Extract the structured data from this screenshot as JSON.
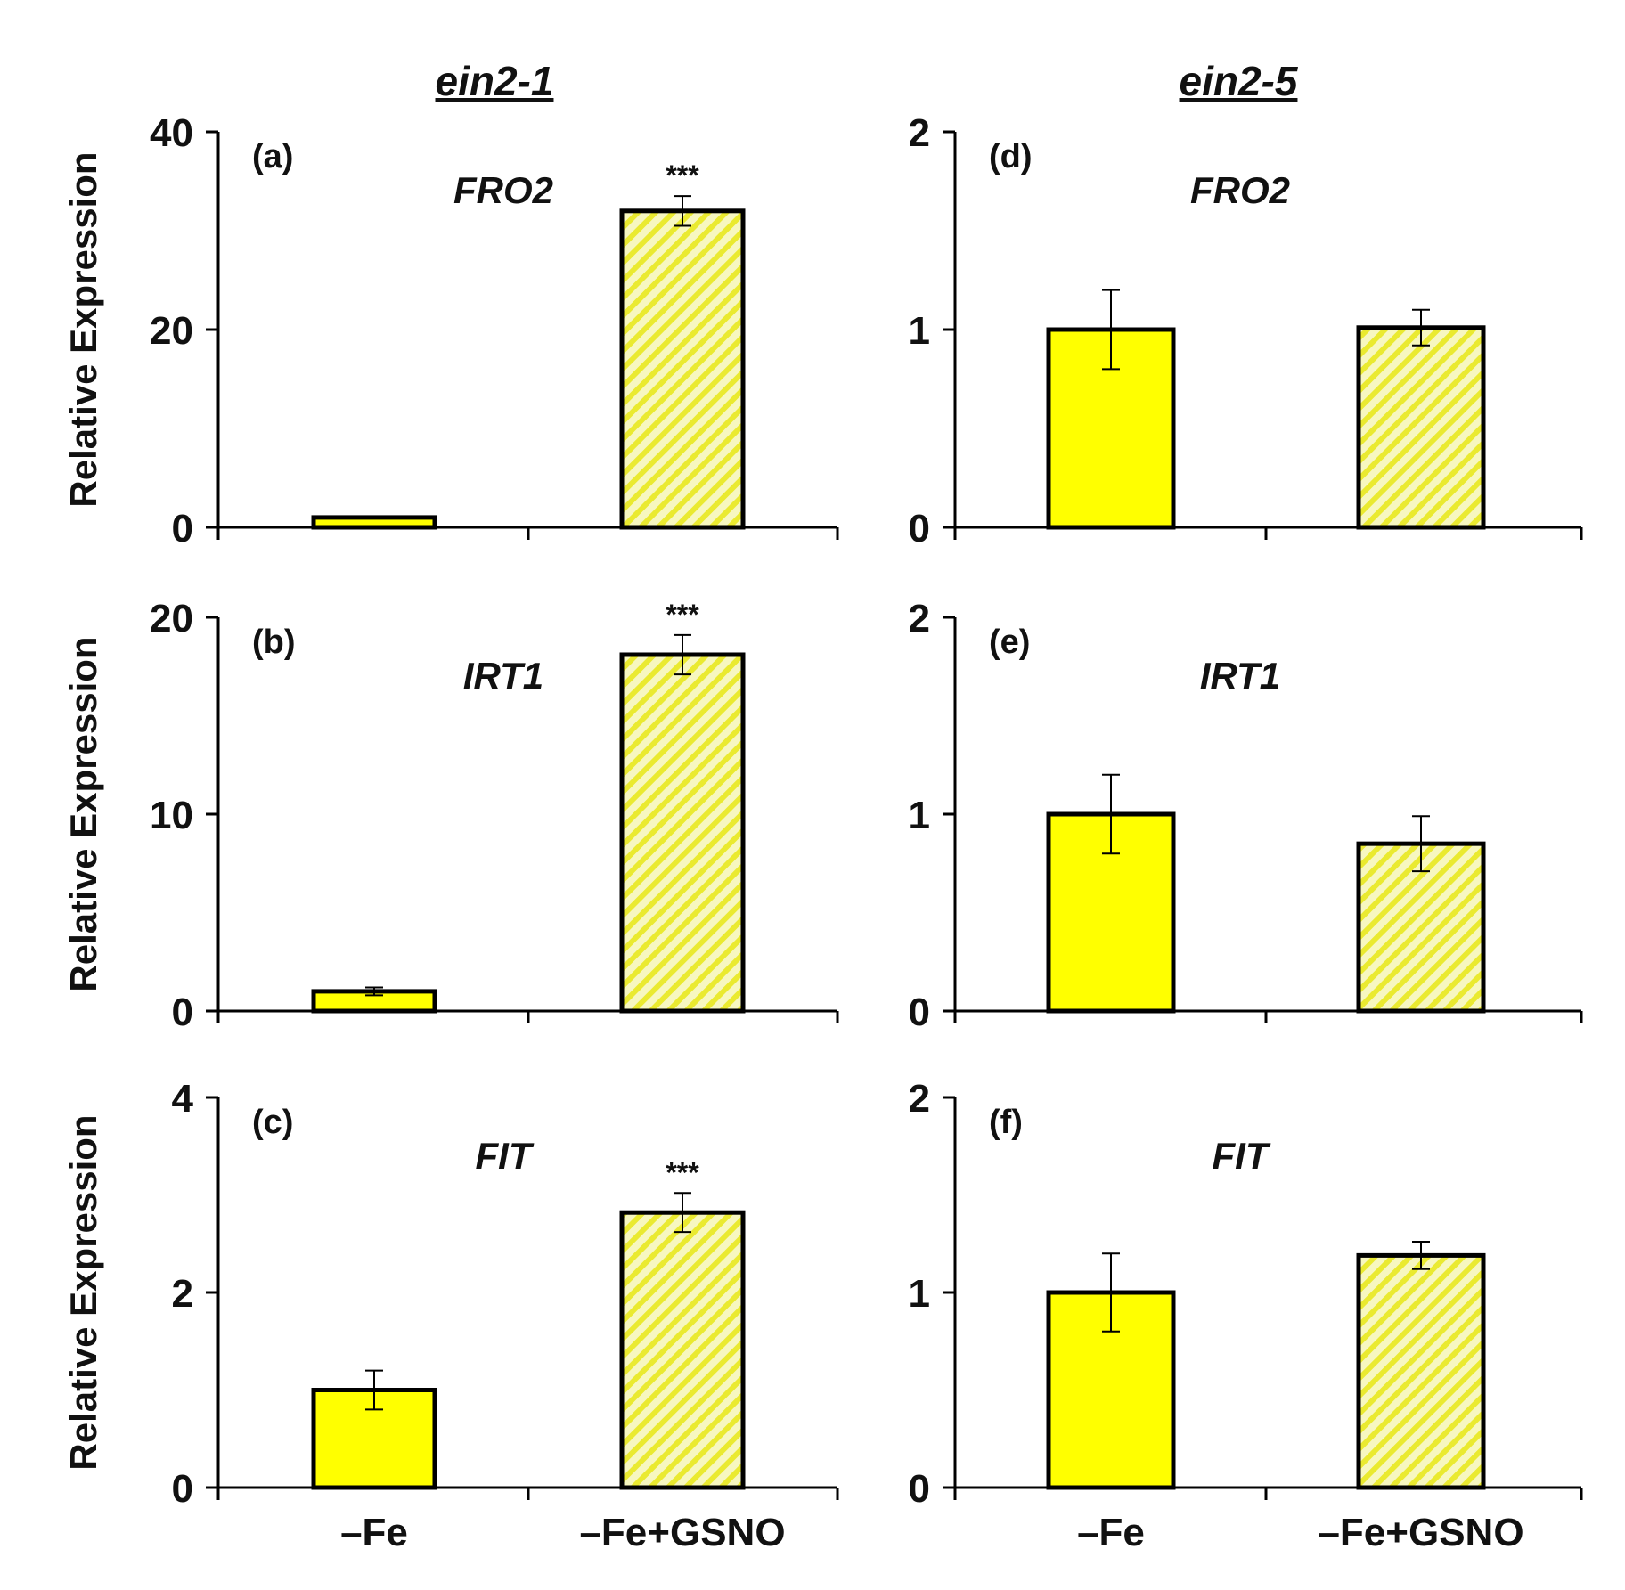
{
  "figure": {
    "columns": [
      {
        "title": "ein2-1"
      },
      {
        "title": "ein2-5"
      }
    ],
    "ylabel": "Relative Expression",
    "categories": [
      "–Fe",
      "–Fe+GSNO"
    ],
    "colors": {
      "bar_fill": "#ffff00",
      "hatch_bg": "#f7f7c0",
      "hatch_line": "#eaea30",
      "bar_edge": "#000000",
      "axis": "#000000"
    },
    "series_styles": [
      "solid",
      "hatched"
    ]
  },
  "chart_data": [
    {
      "type": "bar",
      "panel": "(a)",
      "gene": "FRO2",
      "column": "ein2-1",
      "categories": [
        "–Fe",
        "–Fe+GSNO"
      ],
      "values": [
        1.0,
        32.0
      ],
      "errors": [
        0.1,
        1.5
      ],
      "significance": [
        "",
        "***"
      ],
      "ylim": [
        0,
        40
      ],
      "yticks": [
        0,
        20,
        40
      ],
      "ylabel": "Relative Expression"
    },
    {
      "type": "bar",
      "panel": "(b)",
      "gene": "IRT1",
      "column": "ein2-1",
      "categories": [
        "–Fe",
        "–Fe+GSNO"
      ],
      "values": [
        1.0,
        18.1
      ],
      "errors": [
        0.2,
        1.0
      ],
      "significance": [
        "",
        "***"
      ],
      "ylim": [
        0,
        20
      ],
      "yticks": [
        0,
        10,
        20
      ],
      "ylabel": "Relative Expression"
    },
    {
      "type": "bar",
      "panel": "(c)",
      "gene": "FIT",
      "column": "ein2-1",
      "categories": [
        "–Fe",
        "–Fe+GSNO"
      ],
      "values": [
        1.0,
        2.82
      ],
      "errors": [
        0.2,
        0.2
      ],
      "significance": [
        "",
        "***"
      ],
      "ylim": [
        0,
        4
      ],
      "yticks": [
        0,
        2,
        4
      ],
      "ylabel": "Relative Expression"
    },
    {
      "type": "bar",
      "panel": "(d)",
      "gene": "FRO2",
      "column": "ein2-5",
      "categories": [
        "–Fe",
        "–Fe+GSNO"
      ],
      "values": [
        1.0,
        1.01
      ],
      "errors": [
        0.2,
        0.09
      ],
      "significance": [
        "",
        ""
      ],
      "ylim": [
        0,
        2
      ],
      "yticks": [
        0,
        1,
        2
      ],
      "ylabel": ""
    },
    {
      "type": "bar",
      "panel": "(e)",
      "gene": "IRT1",
      "column": "ein2-5",
      "categories": [
        "–Fe",
        "–Fe+GSNO"
      ],
      "values": [
        1.0,
        0.85
      ],
      "errors": [
        0.2,
        0.14
      ],
      "significance": [
        "",
        ""
      ],
      "ylim": [
        0,
        2
      ],
      "yticks": [
        0,
        1,
        2
      ],
      "ylabel": ""
    },
    {
      "type": "bar",
      "panel": "(f)",
      "gene": "FIT",
      "column": "ein2-5",
      "categories": [
        "–Fe",
        "–Fe+GSNO"
      ],
      "values": [
        1.0,
        1.19
      ],
      "errors": [
        0.2,
        0.07
      ],
      "significance": [
        "",
        ""
      ],
      "ylim": [
        0,
        2
      ],
      "yticks": [
        0,
        1,
        2
      ],
      "ylabel": ""
    }
  ]
}
